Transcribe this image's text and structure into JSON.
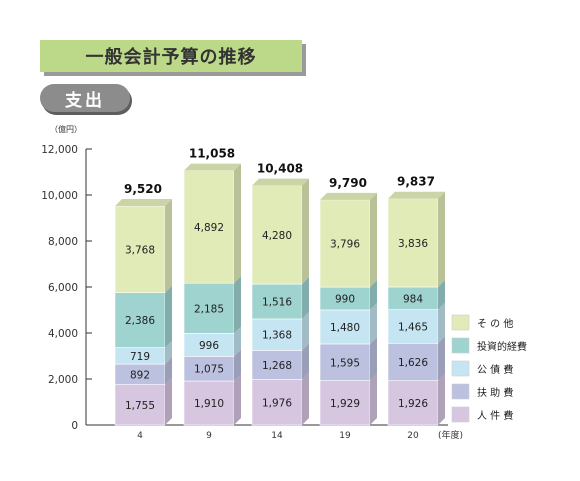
{
  "header": {
    "title": "一般会計予算の推移",
    "section": "支出"
  },
  "chart_data": {
    "type": "bar",
    "stacked": true,
    "title": "一般会計予算の推移",
    "ylabel": "（億円）",
    "xlabel": "(年度)",
    "categories": [
      "4",
      "9",
      "14",
      "19",
      "20"
    ],
    "ylim": [
      0,
      12000
    ],
    "yticks": [
      0,
      2000,
      4000,
      6000,
      8000,
      10000,
      12000
    ],
    "ytick_labels": [
      "0",
      "2,000",
      "4,000",
      "6,000",
      "8,000",
      "10,000",
      "12,000"
    ],
    "totals": [
      9520,
      11058,
      10408,
      9790,
      9837
    ],
    "total_labels": [
      "9,520",
      "11,058",
      "10,408",
      "9,790",
      "9,837"
    ],
    "series": [
      {
        "name": "人 件 費",
        "values": [
          1755,
          1910,
          1976,
          1929,
          1926
        ],
        "labels": [
          "1,755",
          "1,910",
          "1,976",
          "1,929",
          "1,926"
        ],
        "color": "#d6c6e0"
      },
      {
        "name": "扶 助 費",
        "values": [
          892,
          1075,
          1268,
          1595,
          1626
        ],
        "labels": [
          "892",
          "1,075",
          "1,268",
          "1,595",
          "1,626"
        ],
        "color": "#bcc1df"
      },
      {
        "name": "公 債 費",
        "values": [
          719,
          996,
          1368,
          1480,
          1465
        ],
        "labels": [
          "719",
          "996",
          "1,368",
          "1,480",
          "1,465"
        ],
        "color": "#c6e5f2"
      },
      {
        "name": "投資的経費",
        "values": [
          2386,
          2185,
          1516,
          990,
          984
        ],
        "labels": [
          "2,386",
          "2,185",
          "1,516",
          "990",
          "984"
        ],
        "color": "#9ed3d0"
      },
      {
        "name": "そ の 他",
        "values": [
          3768,
          4892,
          4280,
          3796,
          3836
        ],
        "labels": [
          "3,768",
          "4,892",
          "4,280",
          "3,796",
          "3,836"
        ],
        "color": "#e0ebb8"
      }
    ],
    "legend": "right",
    "grid": false
  }
}
